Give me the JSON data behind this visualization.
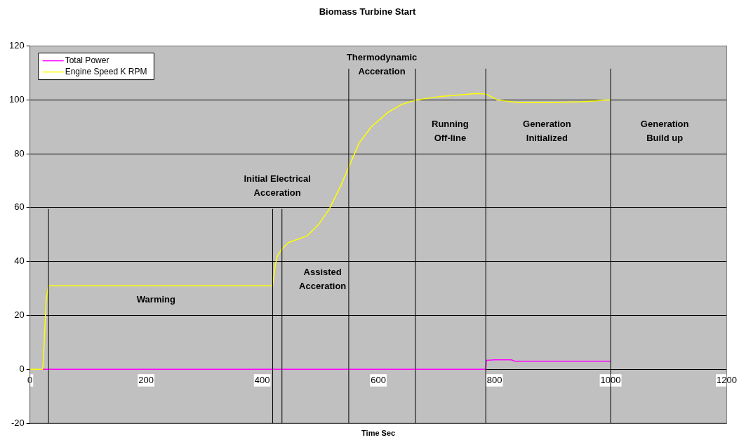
{
  "chart_data": {
    "type": "line",
    "title": "Biomass Turbine Start",
    "xlabel": "Time Sec",
    "xlim": [
      0,
      1200
    ],
    "xticks": [
      0,
      200,
      400,
      600,
      800,
      1000,
      1200
    ],
    "ylim": [
      -20,
      120
    ],
    "yticks": [
      -20,
      0,
      20,
      40,
      60,
      80,
      100,
      120
    ],
    "grid": "y",
    "legend": "top left",
    "marker": "none",
    "line_style": "solid",
    "series": [
      {
        "name": "Total Power",
        "color": "#ff00ff",
        "x": [
          22,
          24,
          785,
          786,
          800,
          829,
          835,
          900,
          1000
        ],
        "values": [
          0,
          0,
          0,
          3.3,
          3.5,
          3.5,
          3,
          3,
          3
        ]
      },
      {
        "name": "Engine Speed K RPM",
        "color": "#ffff00",
        "x": [
          0,
          22,
          24,
          28,
          32,
          418,
          422,
          426,
          433,
          445,
          478,
          498,
          515,
          535,
          549,
          567,
          588,
          616,
          640,
          664,
          708,
          769,
          785,
          805,
          842,
          891,
          950,
          1000
        ],
        "values": [
          0,
          0,
          8,
          26,
          31,
          31,
          38,
          42,
          44.4,
          47,
          49.6,
          54,
          59.3,
          68,
          75,
          84,
          90,
          95.3,
          98.3,
          99.9,
          101.3,
          102.4,
          102.2,
          100,
          99,
          99,
          99.3,
          100
        ]
      }
    ],
    "ref_lines": [
      {
        "axis": "x",
        "value": 32,
        "color": "#000000"
      },
      {
        "axis": "x",
        "value": 418,
        "color": "#000000"
      },
      {
        "axis": "x",
        "value": 434,
        "color": "#000000"
      },
      {
        "axis": "x",
        "value": 549,
        "color": "#000000"
      },
      {
        "axis": "x",
        "value": 664,
        "color": "#000000"
      },
      {
        "axis": "x",
        "value": 785,
        "color": "#000000"
      },
      {
        "axis": "x",
        "value": 1000,
        "color": "#000000"
      }
    ],
    "annotations": [
      "Warming",
      "Initial Electrical\nAcceration",
      "Assisted\nAcceration",
      "Thermodynamic\nAcceration",
      "Running\nOff-line",
      "Generation\nInitialized",
      "Generation\nBuild up"
    ]
  }
}
